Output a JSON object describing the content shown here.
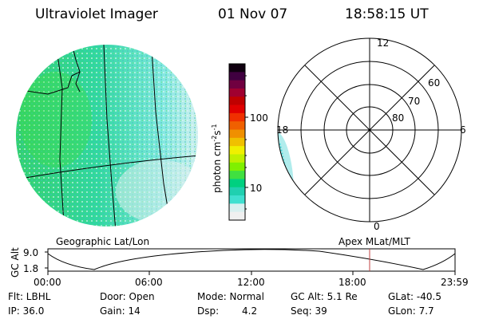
{
  "header": {
    "instrument": "Ultraviolet Imager",
    "date": "01 Nov 07",
    "time": "18:58:15 UT"
  },
  "left_panel": {
    "label": "Geographic Lat/Lon"
  },
  "right_panel": {
    "label": "Apex MLat/MLT",
    "mlt_labels": [
      "12",
      "18",
      "6",
      "0"
    ],
    "mlat_labels": [
      "60",
      "70",
      "80"
    ]
  },
  "colorbar": {
    "title_main": "photon cm",
    "title_exp1": "-2",
    "title_mid": "s",
    "title_exp2": "-1",
    "tick_labels": [
      "100",
      "10"
    ],
    "colors": [
      "#f0f0f0",
      "#d8f0f0",
      "#40e0d0",
      "#20d0b0",
      "#00d080",
      "#40e040",
      "#80f000",
      "#c0f000",
      "#f0f000",
      "#f0c000",
      "#f09000",
      "#f06000",
      "#f03000",
      "#e00000",
      "#c00000",
      "#a00030",
      "#700040",
      "#400040",
      "#100010"
    ]
  },
  "timeline": {
    "y_axis_label": "GC Alt",
    "y_ticks": [
      "9.0",
      "1.8"
    ],
    "x_ticks": [
      "00:00",
      "06:00",
      "12:00",
      "18:00",
      "23:59"
    ],
    "marker_color": "#c04040"
  },
  "info": {
    "flt": "Flt: LBHL",
    "door": "Door: Open",
    "mode": "Mode: Normal",
    "gc_alt": "GC Alt: 5.1 Re",
    "glat": "GLat: -40.5",
    "ip": "IP: 36.0",
    "gain": "Gain: 14",
    "dsp_label": "Dsp:",
    "dsp_value": "4.2",
    "seq": "Seq: 39",
    "glon": "GLon:  7.7"
  }
}
